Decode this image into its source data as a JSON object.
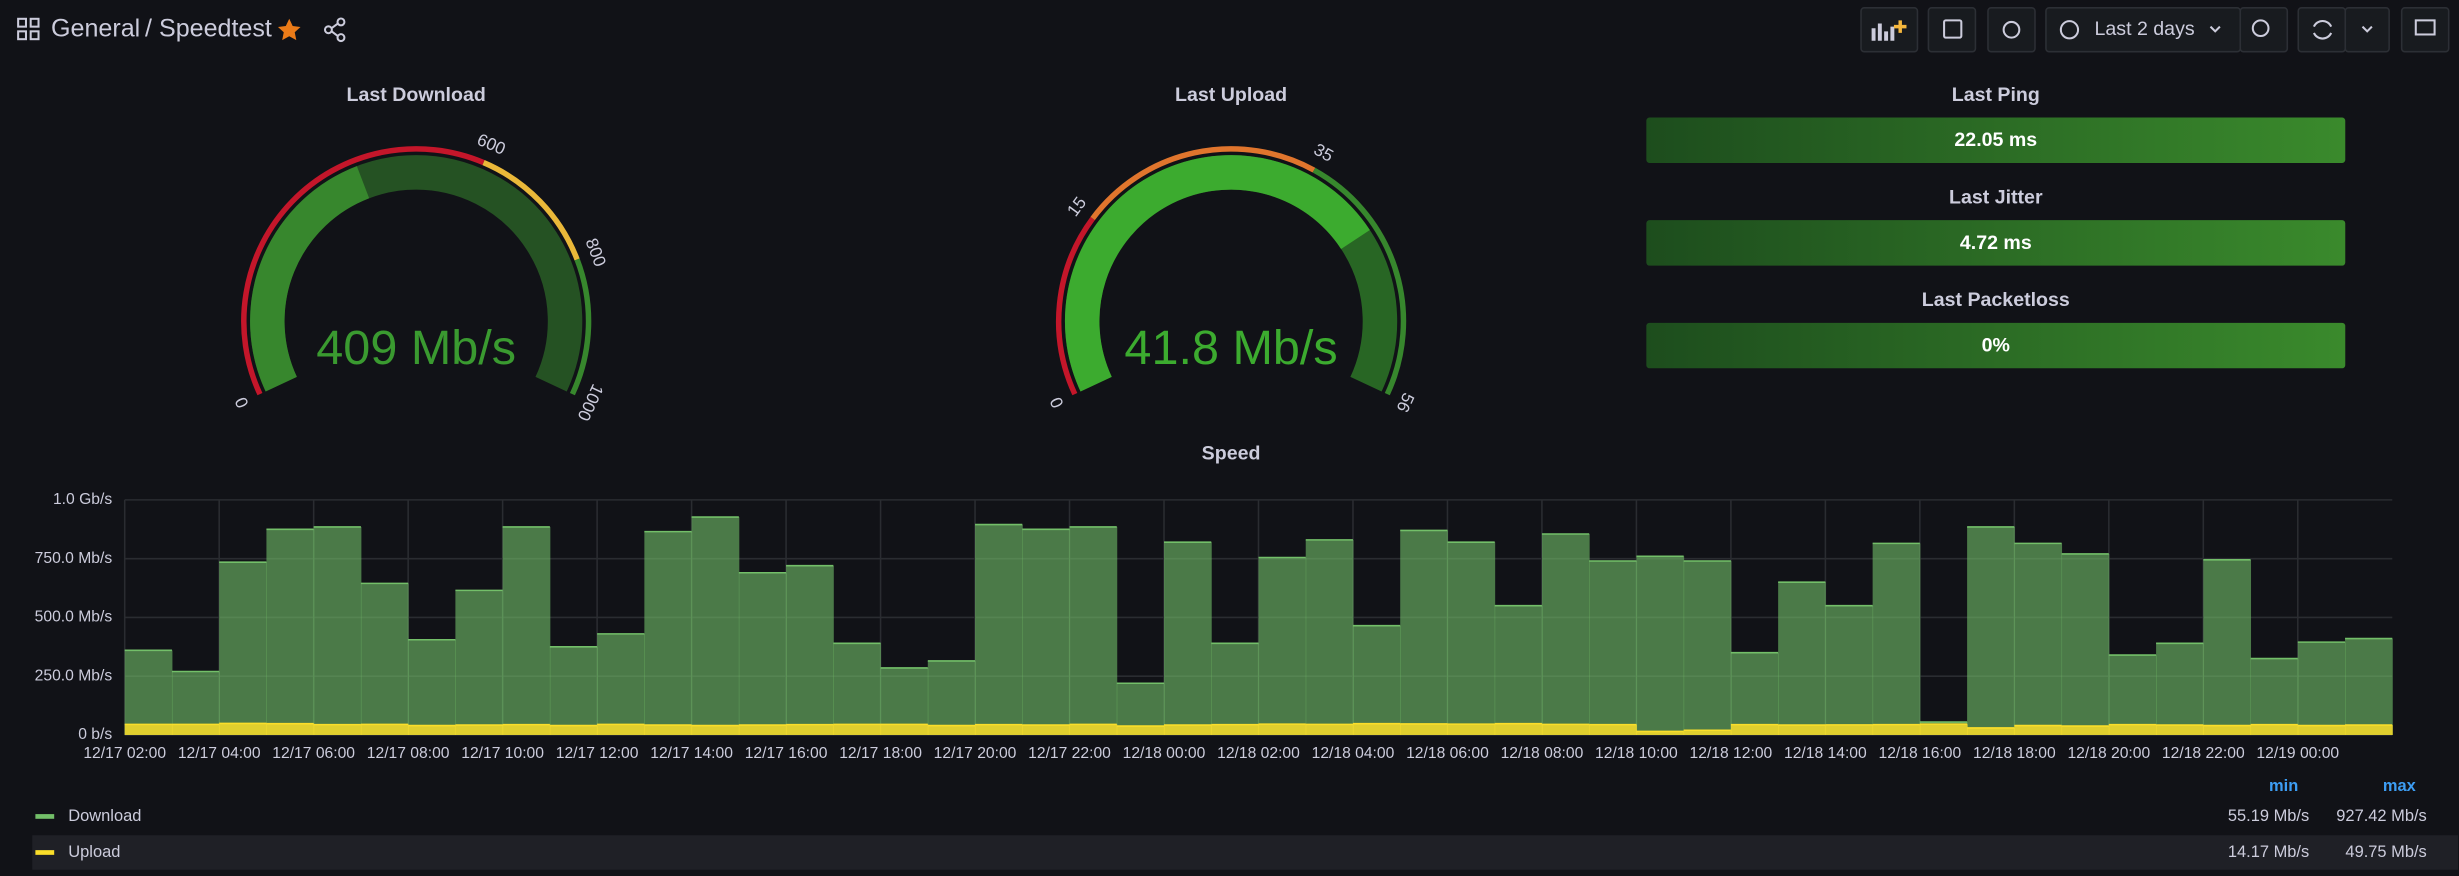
{
  "header": {
    "folder": "General",
    "title": "/ Speedtest",
    "time_range": "Last 2 days"
  },
  "gauges": [
    {
      "title": "Last Download",
      "value": 409,
      "value_label": "409 Mb/s",
      "ticks": [
        0,
        600,
        800,
        1000
      ],
      "step_colors": [
        "#c4162a",
        "#eab839",
        "#37872d"
      ],
      "color": "#37872d"
    },
    {
      "title": "Last Upload",
      "value": 41.8,
      "value_label": "41.8 Mb/s",
      "ticks": [
        0,
        15,
        35,
        56
      ],
      "step_colors": [
        "#c4162a",
        "#e0752d",
        "#37872d"
      ],
      "color": "#3cab2f"
    }
  ],
  "stats": [
    {
      "title": "Last Ping",
      "value": 22.05,
      "value_label": "22.05 ms"
    },
    {
      "title": "Last Jitter",
      "value": 4.72,
      "value_label": "4.72 ms"
    },
    {
      "title": "Last Packetloss",
      "value": 0,
      "value_label": "0%"
    }
  ],
  "chart_data": {
    "type": "area",
    "title": "Speed",
    "x": [
      "12/17 02:00",
      "12/17 03:00",
      "12/17 04:00",
      "12/17 05:00",
      "12/17 06:00",
      "12/17 07:00",
      "12/17 08:00",
      "12/17 09:00",
      "12/17 10:00",
      "12/17 11:00",
      "12/17 12:00",
      "12/17 13:00",
      "12/17 14:00",
      "12/17 15:00",
      "12/17 16:00",
      "12/17 17:00",
      "12/17 18:00",
      "12/17 19:00",
      "12/17 20:00",
      "12/17 21:00",
      "12/17 22:00",
      "12/17 23:00",
      "12/18 00:00",
      "12/18 01:00",
      "12/18 02:00",
      "12/18 03:00",
      "12/18 04:00",
      "12/18 05:00",
      "12/18 06:00",
      "12/18 07:00",
      "12/18 08:00",
      "12/18 09:00",
      "12/18 10:00",
      "12/18 11:00",
      "12/18 12:00",
      "12/18 13:00",
      "12/18 14:00",
      "12/18 15:00",
      "12/18 16:00",
      "12/18 17:00",
      "12/18 18:00",
      "12/18 19:00",
      "12/18 20:00",
      "12/18 21:00",
      "12/18 22:00",
      "12/18 23:00",
      "12/19 00:00",
      "12/19 01:00"
    ],
    "series": [
      {
        "name": "Download",
        "color": "#73bf69",
        "min": "55.19 Mb/s",
        "max": "927.42 Mb/s",
        "values": [
          360,
          270,
          735,
          875,
          885,
          645,
          405,
          615,
          885,
          375,
          430,
          865,
          927,
          690,
          720,
          390,
          285,
          315,
          895,
          875,
          885,
          220,
          820,
          390,
          755,
          830,
          465,
          870,
          820,
          550,
          855,
          740,
          760,
          740,
          350,
          650,
          550,
          815,
          55,
          885,
          815,
          770,
          340,
          390,
          745,
          325,
          395,
          410
        ]
      },
      {
        "name": "Upload",
        "color": "#fade2a",
        "min": "14.17 Mb/s",
        "max": "49.75 Mb/s",
        "values": [
          45,
          45,
          49,
          48,
          44,
          45,
          40,
          42,
          44,
          40,
          45,
          42,
          40,
          42,
          44,
          45,
          45,
          40,
          44,
          42,
          45,
          38,
          42,
          44,
          46,
          45,
          48,
          47,
          46,
          48,
          45,
          44,
          15,
          20,
          44,
          42,
          43,
          44,
          46,
          30,
          40,
          38,
          44,
          42,
          40,
          44,
          40,
          42
        ]
      }
    ],
    "ylim": [
      0,
      1000
    ],
    "yticks": [
      {
        "value": 0,
        "label": "0 b/s"
      },
      {
        "value": 250,
        "label": "250.0 Mb/s"
      },
      {
        "value": 500,
        "label": "500.0 Mb/s"
      },
      {
        "value": 750,
        "label": "750.0 Mb/s"
      },
      {
        "value": 1000,
        "label": "1.0 Gb/s"
      }
    ],
    "grid": true,
    "legend_columns": [
      "min",
      "max"
    ]
  }
}
